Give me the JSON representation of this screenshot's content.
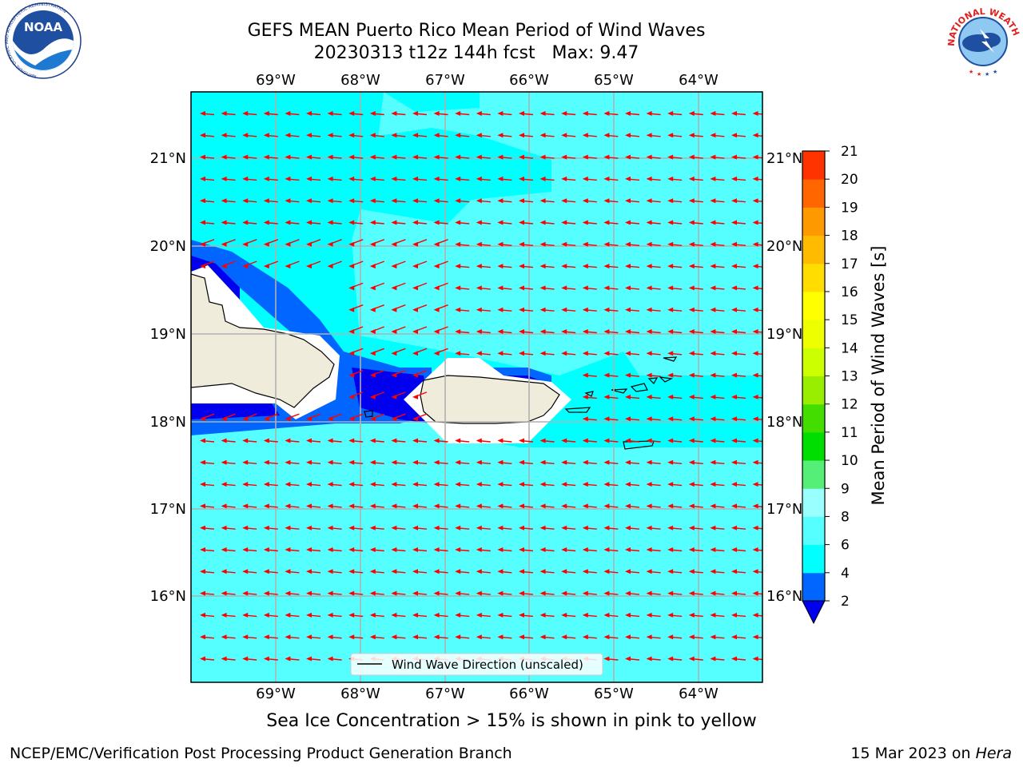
{
  "header": {
    "title_line1": "GEFS MEAN Puerto Rico Mean Period of Wind Waves",
    "title_line2": "20230313 t12z 144h fcst   Max: 9.47"
  },
  "logos": {
    "noaa_text": "NOAA",
    "noaa_ring_text": "NATIONAL OCEANIC AND ATMOSPHERIC ADMINISTRATION",
    "noaa_ring_text_bottom": "U.S. DEPARTMENT OF COMMERCE",
    "nws_ring_text": "NATIONAL WEATHER SERVICE"
  },
  "map": {
    "lon_labels": [
      "69°W",
      "68°W",
      "67°W",
      "66°W",
      "65°W",
      "64°W"
    ],
    "lat_labels": [
      "21°N",
      "20°N",
      "19°N",
      "18°N",
      "17°N",
      "16°N"
    ],
    "lon_range": [
      -70.0,
      -63.25
    ],
    "lat_range": [
      15.0,
      21.75
    ],
    "ocean_color": "#00ffff",
    "light_ocean_color": "#55ffff",
    "land_color": "#efecdc",
    "arrow_color": "#ff0000",
    "arrow_direction": "westward",
    "legend_label": "Wind Wave Direction (unscaled)"
  },
  "colorbar": {
    "label": "Mean Period of Wind Waves [s]",
    "ticks": [
      "2",
      "4",
      "6",
      "8",
      "9",
      "10",
      "11",
      "12",
      "13",
      "14",
      "15",
      "16",
      "17",
      "18",
      "19",
      "20",
      "21"
    ],
    "colors": [
      "#0066ff",
      "#00ffff",
      "#55ffff",
      "#99ffff",
      "#55ee77",
      "#00dd00",
      "#44dd00",
      "#99ee00",
      "#ccff00",
      "#eeff00",
      "#ffff00",
      "#ffdd00",
      "#ffbb00",
      "#ff9900",
      "#ff6600",
      "#ff3300"
    ],
    "under_color": "#0000ee"
  },
  "footer": {
    "subtitle": "Sea Ice Concentration > 15% is shown in pink to yellow",
    "left": "NCEP/EMC/Verification Post Processing Product Generation Branch",
    "right_prefix": "15 Mar 2023 on ",
    "right_host": "Hera"
  }
}
